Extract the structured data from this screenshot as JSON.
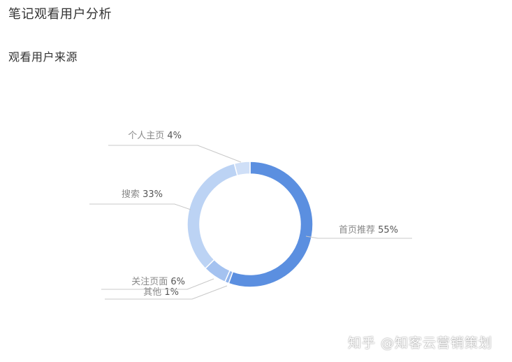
{
  "page": {
    "title": "笔记观看用户分析",
    "section_title": "观看用户来源"
  },
  "chart_data": {
    "type": "pie",
    "donut": true,
    "slices": [
      {
        "label": "首页推荐",
        "value": 55,
        "value_label": "55%",
        "color": "#5b8fe0"
      },
      {
        "label": "其他",
        "value": 1,
        "value_label": "1%",
        "color": "#8fb3ec"
      },
      {
        "label": "关注页面",
        "value": 6,
        "value_label": "6%",
        "color": "#a4c2f0"
      },
      {
        "label": "搜索",
        "value": 33,
        "value_label": "33%",
        "color": "#bcd3f4"
      },
      {
        "label": "个人主页",
        "value": 4,
        "value_label": "4%",
        "color": "#cfdff7"
      }
    ]
  },
  "watermark": "知乎 @知客云营销策划"
}
